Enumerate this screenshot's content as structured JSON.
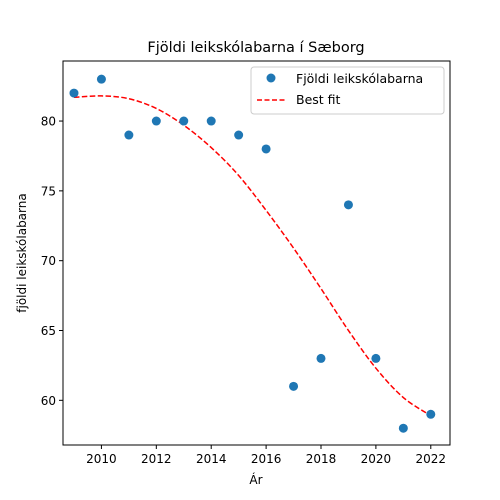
{
  "chart_data": {
    "type": "scatter",
    "title": "Fjöldi leikskólabarna í Sæborg",
    "xlabel": "Ár",
    "ylabel": "fjöldi leikskólabarna",
    "xlim": [
      2008.6,
      2022.7
    ],
    "ylim": [
      56.8,
      84.3
    ],
    "xticks": [
      2010,
      2012,
      2014,
      2016,
      2018,
      2020,
      2022
    ],
    "yticks": [
      60,
      65,
      70,
      75,
      80
    ],
    "grid": false,
    "legend_position": "top-right",
    "series": [
      {
        "name": "Fjöldi leikskólabarna",
        "type": "scatter",
        "color": "#1f77b4",
        "x": [
          2009,
          2010,
          2011,
          2012,
          2013,
          2014,
          2015,
          2016,
          2017,
          2018,
          2019,
          2020,
          2021,
          2022
        ],
        "y": [
          82,
          83,
          79,
          80,
          80,
          80,
          79,
          78,
          61,
          63,
          74,
          63,
          58,
          59
        ]
      },
      {
        "name": "Best fit",
        "type": "line",
        "style": "dashed",
        "color": "#ff0000",
        "x": [
          2009,
          2010,
          2011,
          2012,
          2013,
          2014,
          2015,
          2016,
          2017,
          2018,
          2019,
          2020,
          2021,
          2022
        ],
        "y": [
          81.7,
          81.8,
          81.6,
          80.9,
          79.7,
          78.1,
          76.1,
          73.6,
          70.9,
          68.0,
          65.0,
          62.3,
          60.2,
          58.9
        ]
      }
    ]
  }
}
